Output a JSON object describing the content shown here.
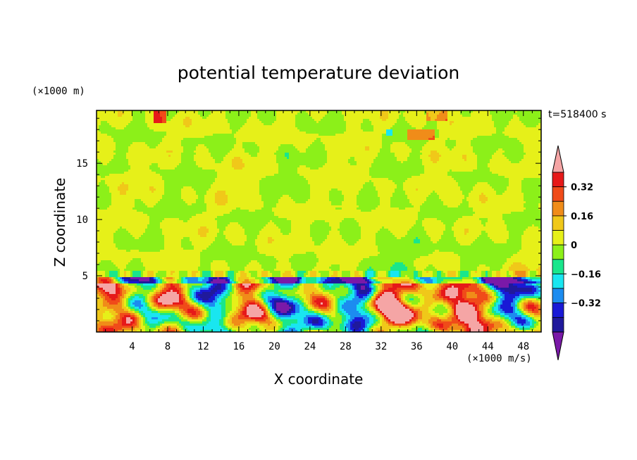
{
  "chart_data": {
    "type": "heatmap",
    "title": "potential temperature deviation",
    "xlabel": "X coordinate",
    "ylabel": "Z coordinate",
    "x_unit": "(×1000 m/s)",
    "y_unit": "(×1000 m)",
    "time_label": "t=518400 s",
    "xlim": [
      0,
      50
    ],
    "ylim": [
      0,
      19.7
    ],
    "x_ticks": [
      4,
      8,
      12,
      16,
      20,
      24,
      28,
      32,
      36,
      40,
      44,
      48
    ],
    "y_ticks": [
      5,
      10,
      15
    ],
    "colorbar": {
      "levels": [
        -0.48,
        -0.4,
        -0.32,
        -0.24,
        -0.16,
        -0.08,
        0,
        0.08,
        0.16,
        0.24,
        0.32,
        0.4
      ],
      "tick_labels": [
        "0.32",
        "0.16",
        "0",
        "−0.16",
        "−0.32"
      ],
      "tick_values": [
        0.32,
        0.16,
        0,
        -0.16,
        -0.32
      ],
      "colors": [
        "#7a19a8",
        "#20199c",
        "#1919d6",
        "#1c8cf0",
        "#19e6f0",
        "#19e68c",
        "#8cf019",
        "#e6f019",
        "#f0c819",
        "#f08c19",
        "#f04b19",
        "#e61919",
        "#f5a5a5"
      ]
    }
  }
}
